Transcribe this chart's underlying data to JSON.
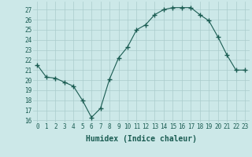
{
  "x": [
    0,
    1,
    2,
    3,
    4,
    5,
    6,
    7,
    8,
    9,
    10,
    11,
    12,
    13,
    14,
    15,
    16,
    17,
    18,
    19,
    20,
    21,
    22,
    23
  ],
  "y": [
    21.5,
    20.3,
    20.2,
    19.8,
    19.4,
    18.0,
    16.3,
    17.2,
    20.1,
    22.2,
    23.3,
    25.0,
    25.5,
    26.5,
    27.0,
    27.2,
    27.2,
    27.2,
    26.5,
    25.9,
    24.3,
    22.5,
    21.0,
    21.0
  ],
  "xlabel": "Humidex (Indice chaleur)",
  "xlim": [
    -0.5,
    23.5
  ],
  "ylim": [
    15.8,
    27.8
  ],
  "yticks": [
    16,
    17,
    18,
    19,
    20,
    21,
    22,
    23,
    24,
    25,
    26,
    27
  ],
  "xticks": [
    0,
    1,
    2,
    3,
    4,
    5,
    6,
    7,
    8,
    9,
    10,
    11,
    12,
    13,
    14,
    15,
    16,
    17,
    18,
    19,
    20,
    21,
    22,
    23
  ],
  "line_color": "#1a5c52",
  "marker": "+",
  "marker_size": 4,
  "bg_color": "#cce8e8",
  "grid_color": "#aacccc",
  "font_color": "#1a5c52",
  "tick_fontsize": 5.5,
  "xlabel_fontsize": 7.0
}
